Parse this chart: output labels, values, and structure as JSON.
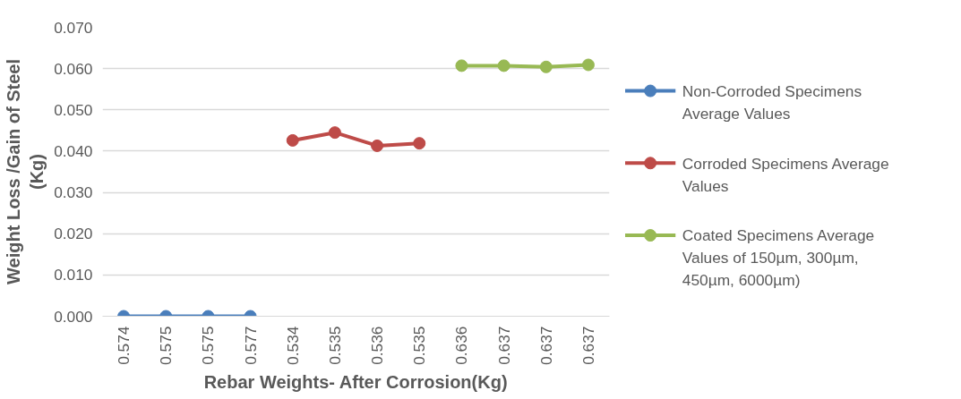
{
  "chart_data": {
    "type": "line",
    "xlabel": "Rebar Weights- After Corrosion(Kg)",
    "ylabel": "Weight Loss /Gain of Steel\n(Kg)",
    "categories": [
      "0.574",
      "0.575",
      "0.575",
      "0.577",
      "0.534",
      "0.535",
      "0.536",
      "0.535",
      "0.636",
      "0.637",
      "0.637",
      "0.637"
    ],
    "series": [
      {
        "name": "Non-Corroded Specimens\nAverage Values",
        "color": "#4a7ebb",
        "values": [
          0.0,
          0.0,
          0.0,
          0.0,
          null,
          null,
          null,
          null,
          null,
          null,
          null,
          null
        ]
      },
      {
        "name": "Corroded Specimens Average\nValues",
        "color": "#be4b48",
        "values": [
          null,
          null,
          null,
          null,
          0.0426,
          0.0445,
          0.0413,
          0.0419,
          null,
          null,
          null,
          null
        ]
      },
      {
        "name": "Coated Specimens Average\nValues of 150µm, 300µm,\n450µm, 6000µm)",
        "color": "#98b954",
        "values": [
          null,
          null,
          null,
          null,
          null,
          null,
          null,
          null,
          0.0607,
          0.0607,
          0.0604,
          0.0609
        ]
      }
    ],
    "ylim": [
      0,
      0.07
    ],
    "yticks": [
      {
        "value": 0,
        "label": "0.000"
      },
      {
        "value": 0.01,
        "label": "0.010"
      },
      {
        "value": 0.02,
        "label": "0.020"
      },
      {
        "value": 0.03,
        "label": "0.030"
      },
      {
        "value": 0.04,
        "label": "0.040"
      },
      {
        "value": 0.05,
        "label": "0.050"
      },
      {
        "value": 0.06,
        "label": "0.060"
      },
      {
        "value": 0.07,
        "label": "0.070"
      }
    ],
    "grid": "y",
    "legend": "right",
    "marker": "circle",
    "line_style": "solid"
  }
}
